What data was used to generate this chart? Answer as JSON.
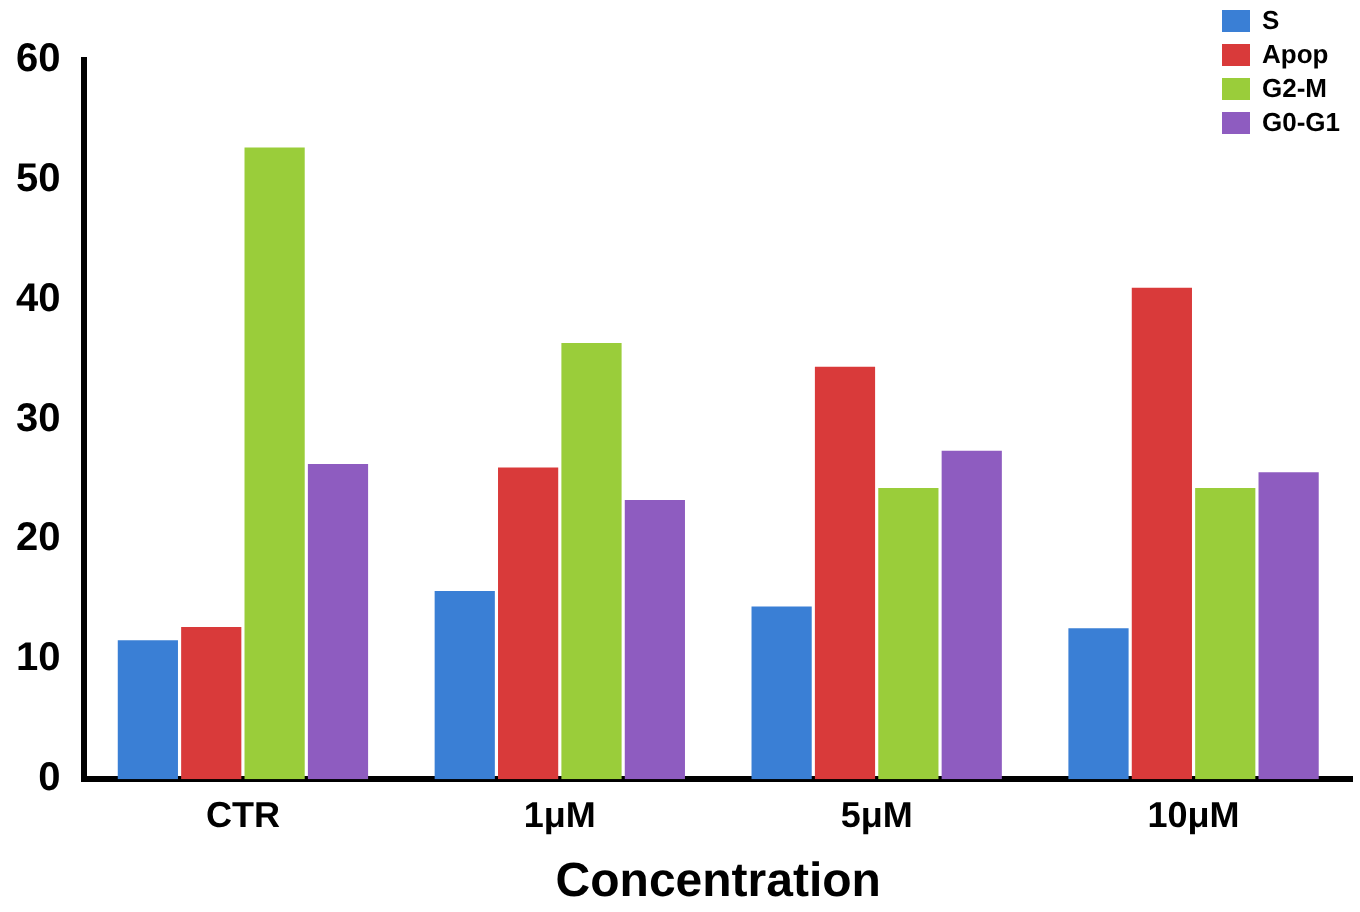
{
  "chart_data": {
    "type": "bar",
    "xlabel": "Concentration",
    "categories": [
      "CTR",
      "1μM",
      "5μM",
      "10μM"
    ],
    "series": [
      {
        "name": "S",
        "color": "#3a7fd5",
        "values": [
          11.6,
          15.7,
          14.4,
          12.6
        ]
      },
      {
        "name": "Apop",
        "color": "#d93a3a",
        "values": [
          12.7,
          26,
          34.4,
          41
        ]
      },
      {
        "name": "G2-M",
        "color": "#9acd3a",
        "values": [
          52.7,
          36.4,
          24.3,
          24.3
        ]
      },
      {
        "name": "G0-G1",
        "color": "#8e5cc0",
        "values": [
          26.3,
          23.3,
          27.4,
          25.6
        ]
      }
    ],
    "ylim": [
      0,
      60
    ],
    "yticks": [
      0,
      10,
      20,
      30,
      40,
      50,
      60
    ],
    "grid": false,
    "legend": "top right"
  }
}
